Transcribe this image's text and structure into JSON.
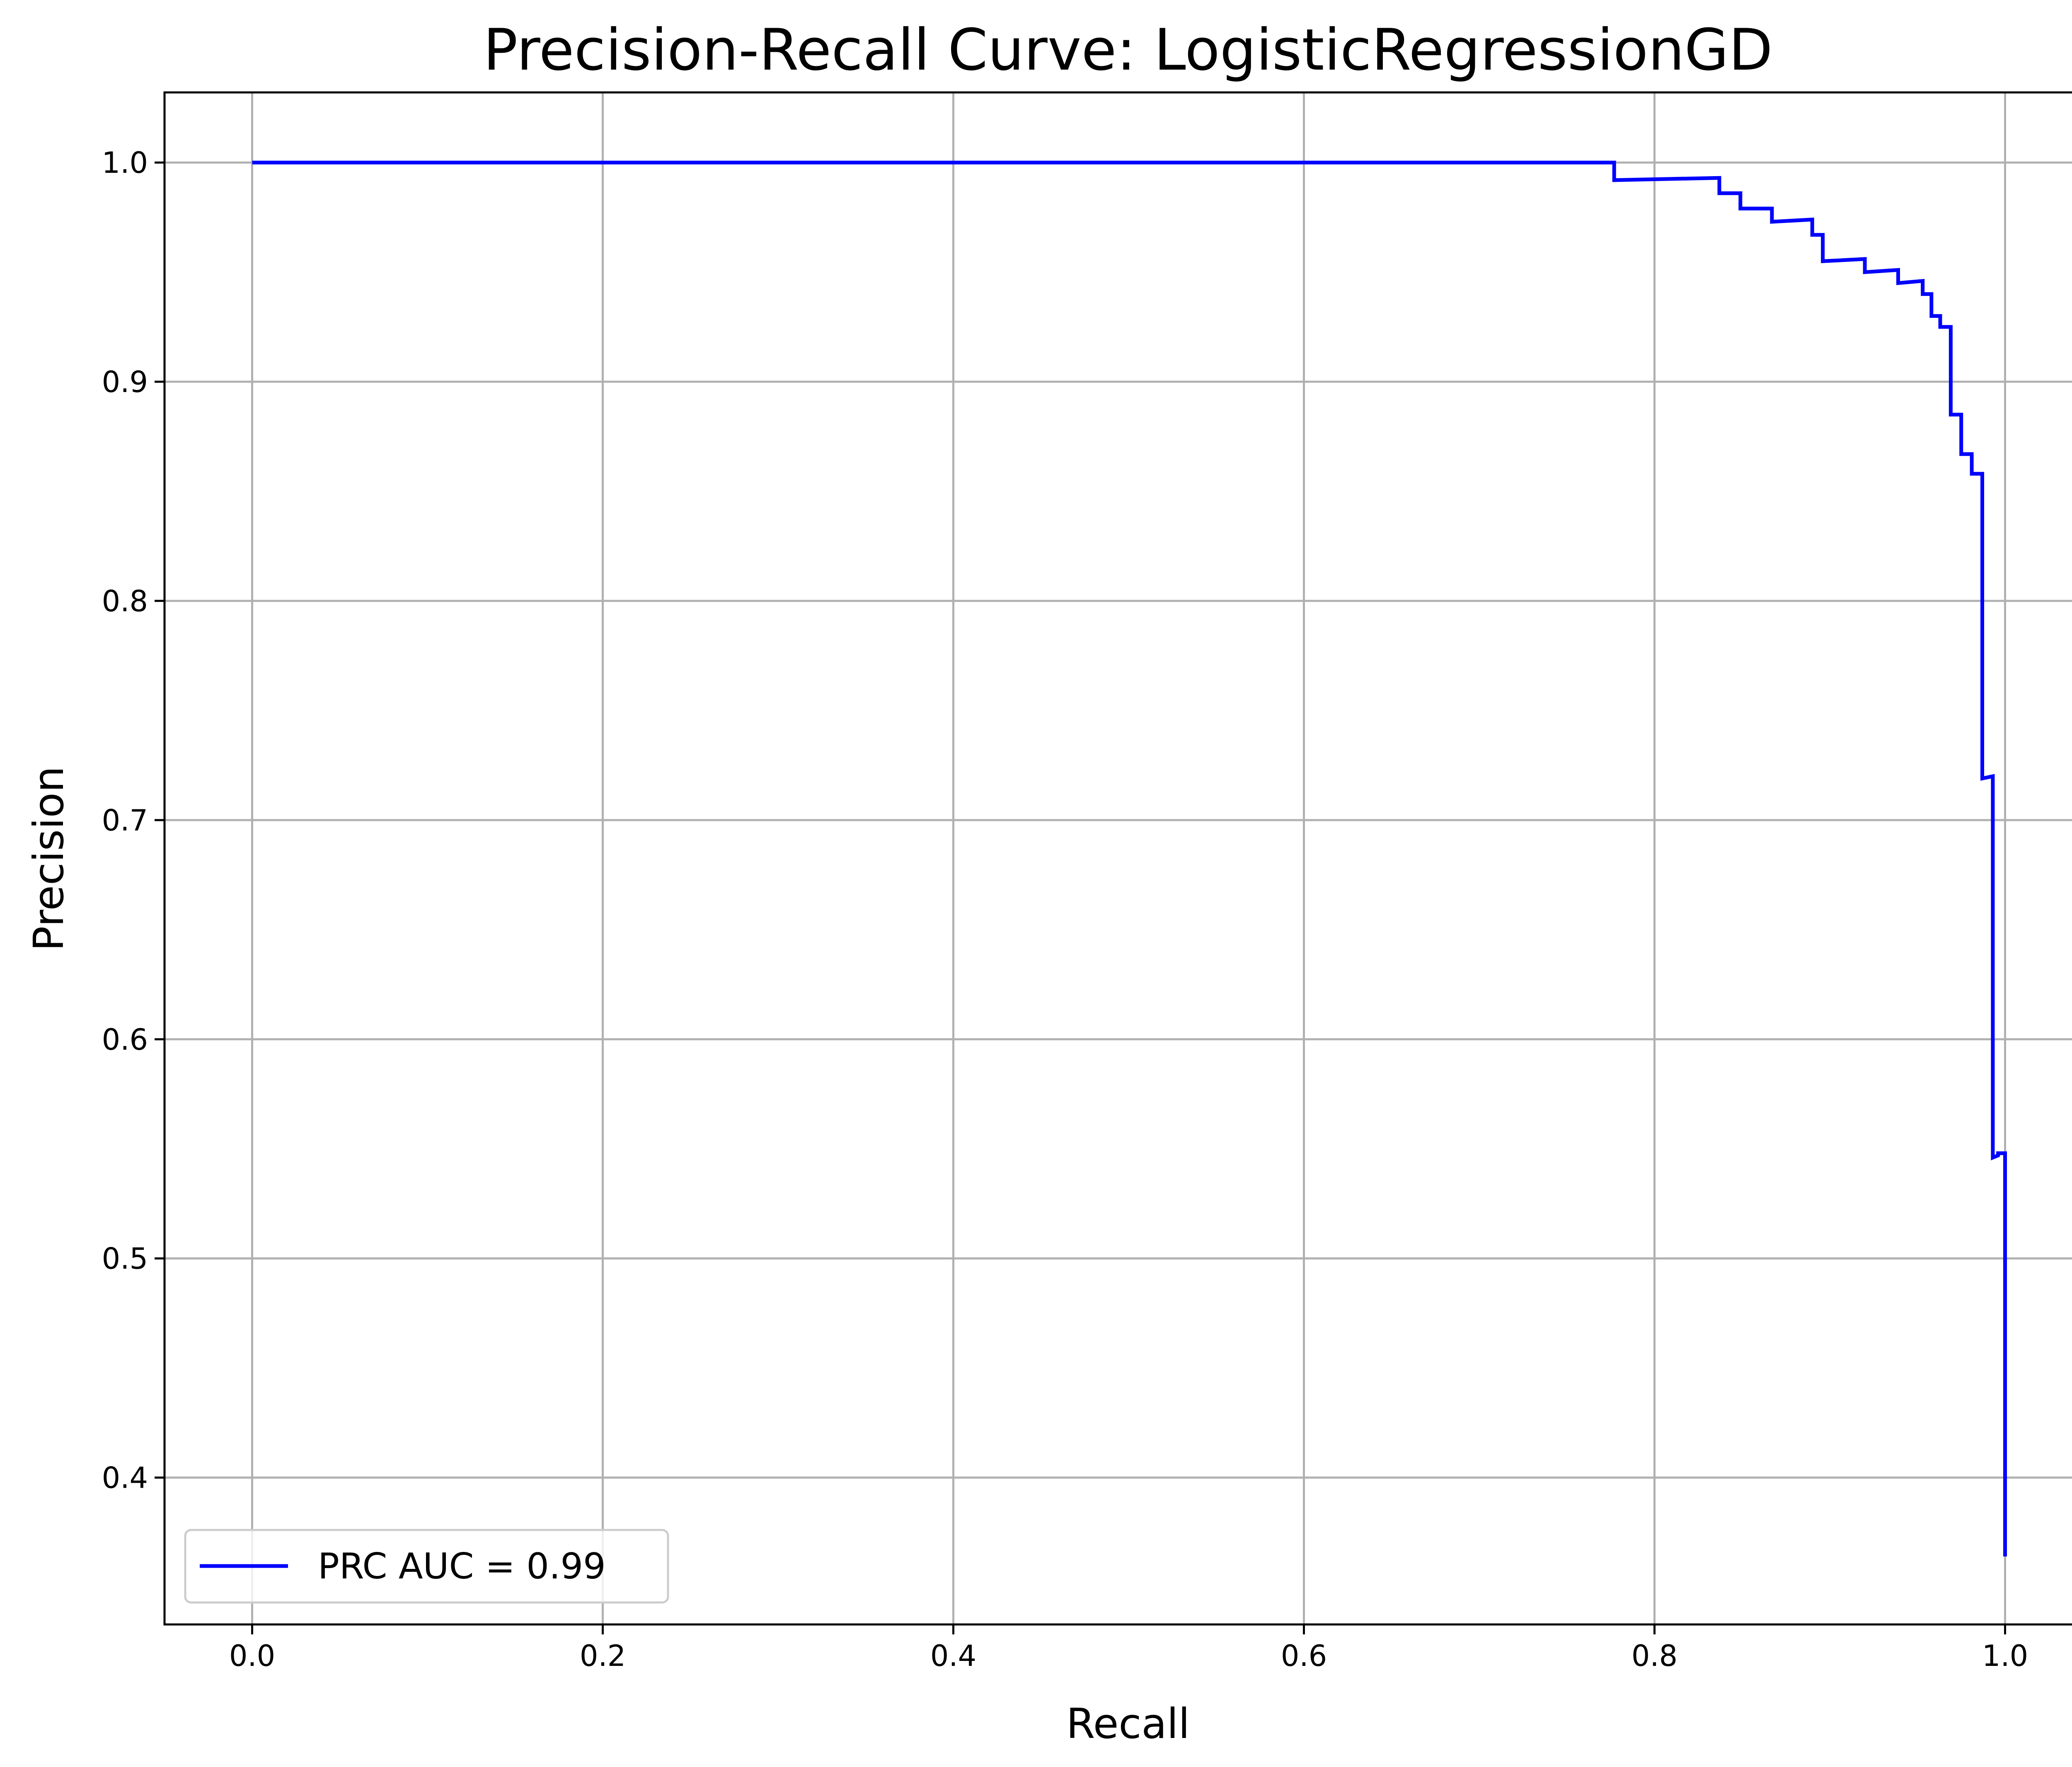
{
  "chart_data": {
    "type": "line",
    "title": "Precision-Recall Curve: LogisticRegressionGD",
    "xlabel": "Recall",
    "ylabel": "Precision",
    "xlim": [
      -0.05,
      1.05
    ],
    "ylim": [
      0.333,
      1.032
    ],
    "xticks": [
      0.0,
      0.2,
      0.4,
      0.6,
      0.8,
      1.0
    ],
    "xtick_labels": [
      "0.0",
      "0.2",
      "0.4",
      "0.6",
      "0.8",
      "1.0"
    ],
    "yticks": [
      0.4,
      0.5,
      0.6,
      0.7,
      0.8,
      0.9,
      1.0
    ],
    "ytick_labels": [
      "0.4",
      "0.5",
      "0.6",
      "0.7",
      "0.8",
      "0.9",
      "1.0"
    ],
    "grid": true,
    "legend_position": "lower-left",
    "series": [
      {
        "name": "PRC AUC = 0.99",
        "color": "#0000ff",
        "x": [
          0.0,
          0.777,
          0.777,
          0.837,
          0.837,
          0.849,
          0.849,
          0.867,
          0.867,
          0.89,
          0.89,
          0.896,
          0.896,
          0.92,
          0.92,
          0.939,
          0.939,
          0.953,
          0.953,
          0.958,
          0.958,
          0.963,
          0.963,
          0.969,
          0.969,
          0.975,
          0.975,
          0.981,
          0.981,
          0.987,
          0.987,
          0.993,
          0.993,
          0.996,
          0.996,
          1.0,
          1.0
        ],
        "y": [
          1.0,
          1.0,
          0.992,
          0.993,
          0.986,
          0.986,
          0.979,
          0.979,
          0.973,
          0.974,
          0.967,
          0.967,
          0.955,
          0.956,
          0.95,
          0.951,
          0.945,
          0.946,
          0.94,
          0.94,
          0.93,
          0.93,
          0.925,
          0.925,
          0.885,
          0.885,
          0.867,
          0.867,
          0.858,
          0.858,
          0.719,
          0.72,
          0.546,
          0.547,
          0.548,
          0.548,
          0.364
        ]
      }
    ]
  }
}
